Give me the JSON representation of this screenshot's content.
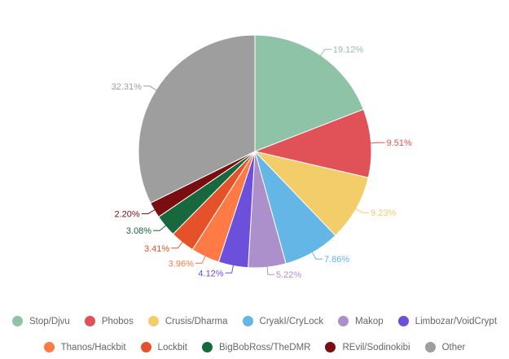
{
  "chart_data": {
    "type": "pie",
    "title": "",
    "categories": [
      "Stop/Djvu",
      "Phobos",
      "Crusis/Dharma",
      "CryakI/CryLock",
      "Makop",
      "Limbozar/VoidCrypt",
      "Thanos/Hackbit",
      "Lockbit",
      "BigBobRoss/TheDMR",
      "REvil/Sodinokibi",
      "Other"
    ],
    "values": [
      19.12,
      9.51,
      9.23,
      7.86,
      5.22,
      4.12,
      3.96,
      3.41,
      3.08,
      2.2,
      32.31
    ],
    "labels": [
      "19.12%",
      "9.51%",
      "9.23%",
      "7.86%",
      "5.22%",
      "4.12%",
      "3.96%",
      "3.41%",
      "3.08%",
      "2.20%",
      "32.31%"
    ],
    "colors": [
      "#8fc3a7",
      "#e05257",
      "#f2cd6a",
      "#63b6e5",
      "#ab90cb",
      "#6c4fda",
      "#ff7a45",
      "#e5522a",
      "#17693d",
      "#7a0d10",
      "#9e9e9e"
    ],
    "legend_position": "bottom"
  }
}
